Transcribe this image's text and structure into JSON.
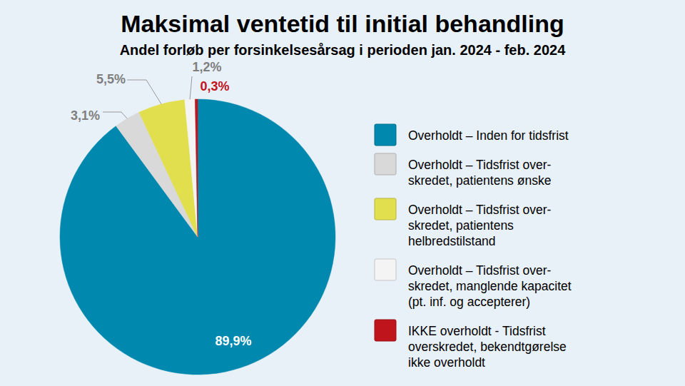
{
  "chart_data": {
    "type": "pie",
    "title": "Maksimal ventetid til initial behandling",
    "subtitle": "Andel forløb per forsinkelsesårsag i perioden jan. 2024 - feb. 2024",
    "categories": [
      "Overholdt – Inden for tidsfrist",
      "Overholdt – Tidsfrist over-\nskredet, patientens ønske",
      "Overholdt – Tidsfrist over-\nskredet, patientens\nhelbredstilstand",
      "Overholdt – Tidsfrist over-\nskredet, manglende kapacitet\n(pt. inf. og accepterer)",
      "IKKE overholdt - Tidsfrist\noverskredet, bekendtgørelse\nikke overholdt"
    ],
    "values": [
      89.9,
      3.1,
      5.5,
      1.2,
      0.3
    ],
    "value_labels": [
      "89,9%",
      "3,1%",
      "5,5%",
      "1,2%",
      "0,3%"
    ],
    "colors": [
      "#0088ae",
      "#d9d9d9",
      "#e1df4e",
      "#f4f4f4",
      "#c0141c"
    ],
    "data_labels": true,
    "legend": "right"
  }
}
